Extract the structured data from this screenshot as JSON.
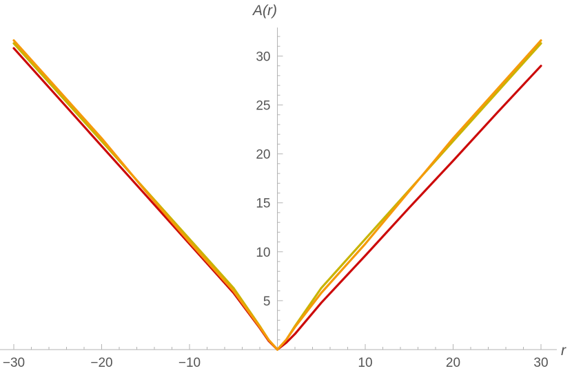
{
  "chart_data": {
    "type": "line",
    "xlabel": "r",
    "ylabel": "A(r)",
    "xlim": [
      -30,
      30
    ],
    "ylim": [
      0,
      32
    ],
    "x_ticks": [
      -30,
      -20,
      -10,
      10,
      20,
      30
    ],
    "y_ticks": [
      5,
      10,
      15,
      20,
      25,
      30
    ],
    "x_tick_labels": [
      "−30",
      "−20",
      "−10",
      "10",
      "20",
      "30"
    ],
    "y_tick_labels": [
      "5",
      "10",
      "15",
      "20",
      "25",
      "30"
    ],
    "grid": false,
    "legend": "none",
    "series": [
      {
        "color": "#C8B400",
        "x": [
          -30,
          -25,
          -20,
          -15,
          -10,
          -5,
          -2,
          -1,
          0,
          1,
          2,
          5,
          10,
          15,
          20,
          25,
          30
        ],
        "y": [
          31.3,
          26.3,
          21.3,
          16.3,
          11.3,
          6.3,
          2.4,
          1.0,
          0.0,
          1.0,
          2.4,
          6.3,
          11.3,
          16.3,
          21.3,
          26.3,
          31.3
        ]
      },
      {
        "color": "#CC0A0A",
        "x": [
          -30,
          -25,
          -20,
          -15,
          -10,
          -5,
          -2,
          -1,
          0,
          1,
          2,
          5,
          10,
          15,
          20,
          25,
          30
        ],
        "y": [
          30.8,
          25.8,
          20.8,
          15.8,
          10.8,
          5.8,
          2.2,
          0.9,
          0.0,
          0.7,
          1.6,
          4.8,
          9.6,
          14.5,
          19.3,
          24.2,
          29.0
        ]
      },
      {
        "color": "#F59A0A",
        "x": [
          -30,
          -25,
          -20,
          -15,
          -10,
          -5,
          -2,
          -1,
          0,
          1,
          2,
          5,
          10,
          15,
          20,
          25,
          30
        ],
        "y": [
          31.6,
          26.6,
          21.6,
          16.2,
          11.0,
          6.0,
          2.3,
          1.0,
          0.0,
          1.0,
          2.3,
          5.8,
          10.8,
          16.2,
          21.6,
          26.6,
          31.6
        ]
      }
    ]
  }
}
